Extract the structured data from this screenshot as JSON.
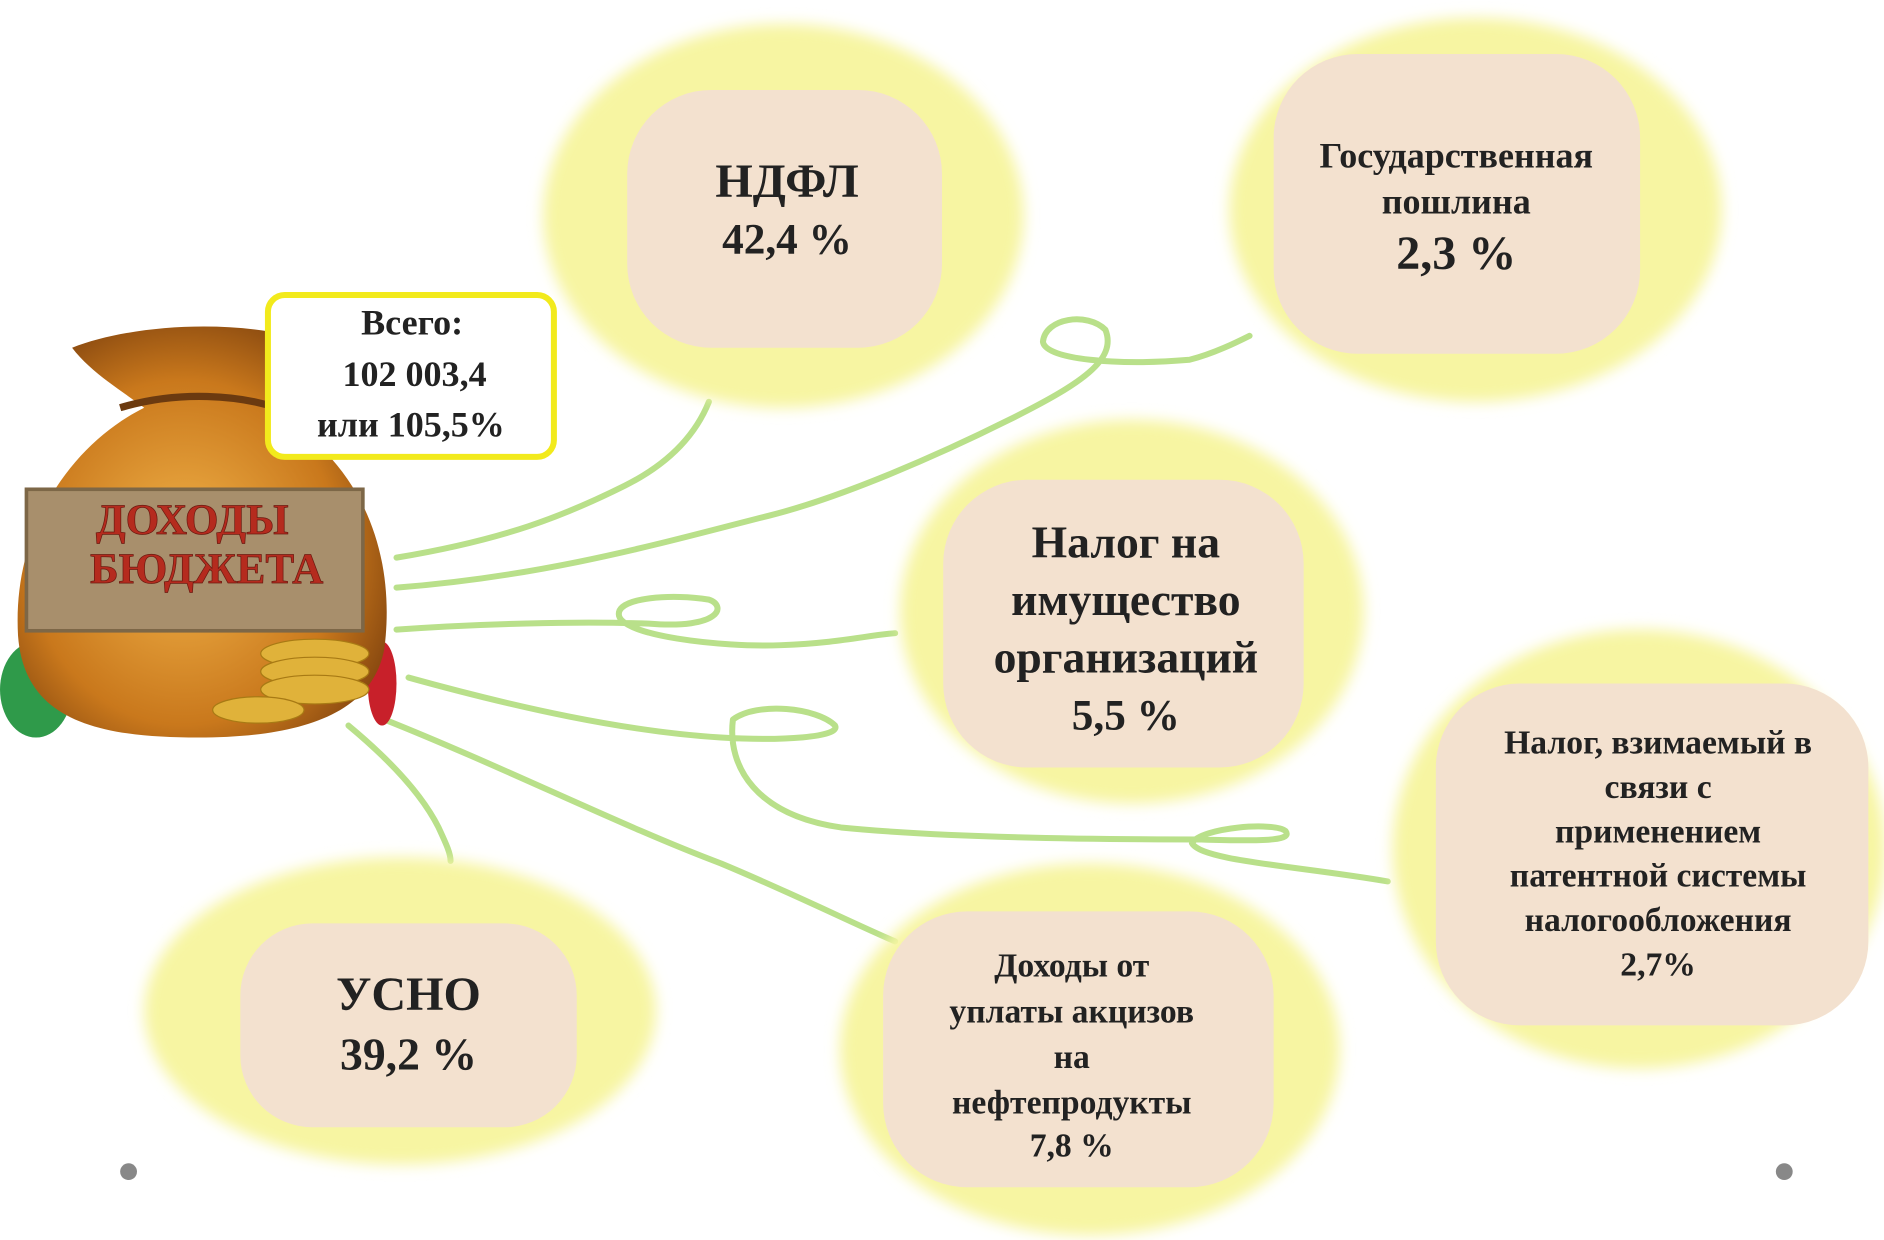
{
  "bag": {
    "label_lines": [
      "ДОХОДЫ",
      "БЮДЖЕТА"
    ]
  },
  "total": {
    "lines": [
      "Всего:",
      "102 003,4",
      "или 105,5%"
    ]
  },
  "nodes": [
    {
      "lines": [
        "НДФЛ"
      ],
      "value": "42,4 %"
    },
    {
      "lines": [
        "Государственная",
        "пошлина"
      ],
      "value": "2,3 %"
    },
    {
      "lines": [
        "Налог на",
        "имущество",
        "организаций"
      ],
      "value": "5,5 %"
    },
    {
      "lines": [
        "Налог, взимаемый в",
        "связи с",
        "применением",
        "патентной системы",
        "налогообложения"
      ],
      "value": "2,7%"
    },
    {
      "lines": [
        "Доходы от",
        "уплаты акцизов",
        "на",
        "нефтепродукты"
      ],
      "value": "7,8 %"
    },
    {
      "lines": [
        "УСНО"
      ],
      "value": "39,2 %"
    }
  ]
}
